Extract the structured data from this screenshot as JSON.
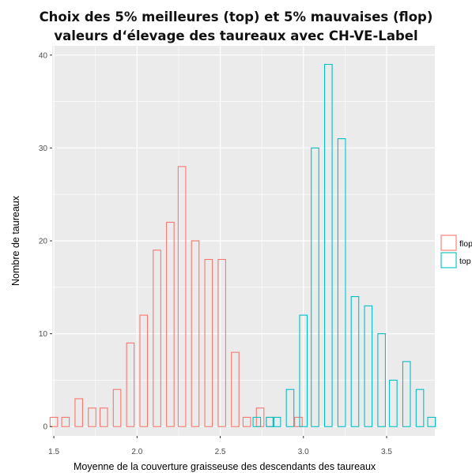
{
  "chart_data": {
    "type": "bar",
    "title_lines": [
      "Choix des 5% meilleures (top) et 5% mauvaises (flop)",
      "valeurs d‘élevage des taureaux avec CH-VE-Label"
    ],
    "xlabel": "Moyenne de la couverture graisseuse des descendants des taureaux",
    "ylabel": "Nombre de taureaux",
    "xlim": [
      1.49,
      3.79
    ],
    "ylim": [
      -1,
      41
    ],
    "xticks": [
      1.5,
      2.0,
      2.5,
      3.0,
      3.5
    ],
    "xtick_labels": [
      "1.5",
      "2.0",
      "2.5",
      "3.0",
      "3.5"
    ],
    "yticks": [
      0,
      10,
      20,
      30,
      40
    ],
    "ytick_labels": [
      "0",
      "10",
      "20",
      "30",
      "40"
    ],
    "bin_width": 0.05,
    "grid": true,
    "legend_position": "right",
    "series": [
      {
        "name": "flop",
        "color": "#F8766D",
        "bins": [
          {
            "x": 1.5,
            "count": 1
          },
          {
            "x": 1.57,
            "count": 1
          },
          {
            "x": 1.65,
            "count": 3
          },
          {
            "x": 1.73,
            "count": 2
          },
          {
            "x": 1.8,
            "count": 2
          },
          {
            "x": 1.88,
            "count": 4
          },
          {
            "x": 1.96,
            "count": 9
          },
          {
            "x": 2.04,
            "count": 12
          },
          {
            "x": 2.12,
            "count": 19
          },
          {
            "x": 2.2,
            "count": 22
          },
          {
            "x": 2.27,
            "count": 28
          },
          {
            "x": 2.35,
            "count": 20
          },
          {
            "x": 2.43,
            "count": 18
          },
          {
            "x": 2.51,
            "count": 18
          },
          {
            "x": 2.59,
            "count": 8
          },
          {
            "x": 2.66,
            "count": 1
          },
          {
            "x": 2.74,
            "count": 2
          },
          {
            "x": 2.8,
            "count": 1
          },
          {
            "x": 2.97,
            "count": 1
          }
        ]
      },
      {
        "name": "top",
        "color": "#00BFC4",
        "bins": [
          {
            "x": 2.72,
            "count": 1
          },
          {
            "x": 2.8,
            "count": 1
          },
          {
            "x": 2.84,
            "count": 1
          },
          {
            "x": 2.92,
            "count": 4
          },
          {
            "x": 3.0,
            "count": 12
          },
          {
            "x": 3.07,
            "count": 30
          },
          {
            "x": 3.15,
            "count": 39
          },
          {
            "x": 3.23,
            "count": 31
          },
          {
            "x": 3.31,
            "count": 14
          },
          {
            "x": 3.39,
            "count": 13
          },
          {
            "x": 3.47,
            "count": 10
          },
          {
            "x": 3.54,
            "count": 5
          },
          {
            "x": 3.62,
            "count": 7
          },
          {
            "x": 3.7,
            "count": 4
          },
          {
            "x": 3.77,
            "count": 1
          }
        ]
      }
    ]
  }
}
